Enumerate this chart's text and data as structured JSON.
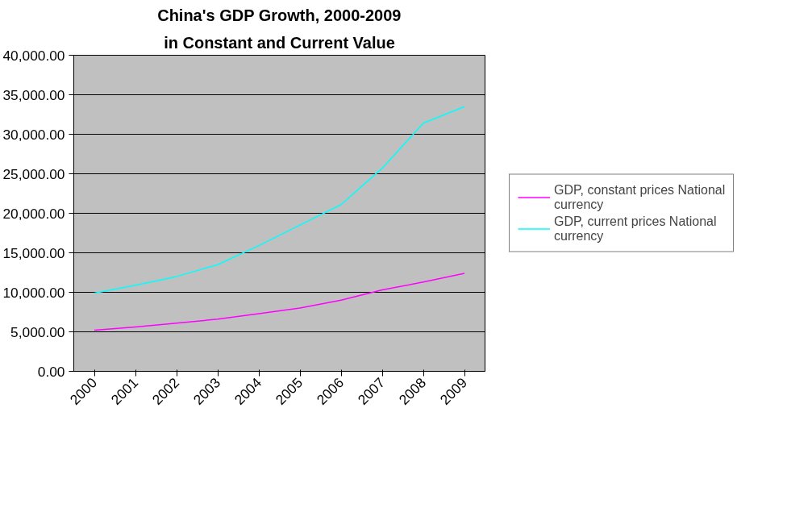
{
  "chart_data": {
    "type": "line",
    "title": "China's GDP Growth, 2000-2009",
    "subtitle": "in Constant and Current Value",
    "categories": [
      "2000",
      "2001",
      "2002",
      "2003",
      "2004",
      "2005",
      "2006",
      "2007",
      "2008",
      "2009"
    ],
    "series": [
      {
        "name": "GDP, constant prices National currency",
        "color": "#ff00ff",
        "values": [
          5200,
          5600,
          6100,
          6600,
          7300,
          8000,
          9000,
          10300,
          11300,
          12400
        ]
      },
      {
        "name": "GDP, current prices National currency",
        "color": "#00ffff",
        "values": [
          9900,
          10900,
          12000,
          13500,
          15900,
          18500,
          21100,
          25700,
          31400,
          33500
        ]
      }
    ],
    "ylim": [
      0,
      40000
    ],
    "yticks": [
      {
        "value": 0,
        "label": "0.00"
      },
      {
        "value": 5000,
        "label": "5,000.00"
      },
      {
        "value": 10000,
        "label": "10,000.00"
      },
      {
        "value": 15000,
        "label": "15,000.00"
      },
      {
        "value": 20000,
        "label": "20,000.00"
      },
      {
        "value": 25000,
        "label": "25,000.00"
      },
      {
        "value": 30000,
        "label": "30,000.00"
      },
      {
        "value": 35000,
        "label": "35,000.00"
      },
      {
        "value": 40000,
        "label": "40,000.00"
      }
    ],
    "grid": "y",
    "legend": "right",
    "marker": "none",
    "line_style": "solid"
  }
}
